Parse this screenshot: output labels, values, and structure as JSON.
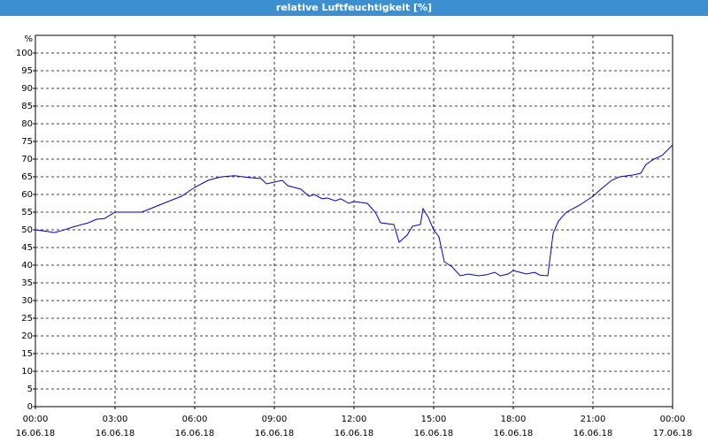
{
  "window_title": "relative Luftfeuchtigkeit [%]",
  "chart_data": {
    "type": "line",
    "y_label": "%",
    "color": "#0000c0",
    "grid": true,
    "xlim": [
      0,
      24
    ],
    "ylim": [
      0,
      105
    ],
    "xticks": [
      {
        "value": 0,
        "label": "00:00",
        "date": "16.06.18"
      },
      {
        "value": 3,
        "label": "03:00",
        "date": "16.06.18"
      },
      {
        "value": 6,
        "label": "06:00",
        "date": "16.06.18"
      },
      {
        "value": 9,
        "label": "09:00",
        "date": "16.06.18"
      },
      {
        "value": 12,
        "label": "12:00",
        "date": "16.06.18"
      },
      {
        "value": 15,
        "label": "15:00",
        "date": "16.06.18"
      },
      {
        "value": 18,
        "label": "18:00",
        "date": "16.06.18"
      },
      {
        "value": 21,
        "label": "21:00",
        "date": "16.06.18"
      },
      {
        "value": 24,
        "label": "00:00",
        "date": "17.06.18"
      }
    ],
    "yticks": [
      0,
      5,
      10,
      15,
      20,
      25,
      30,
      35,
      40,
      45,
      50,
      55,
      60,
      65,
      70,
      75,
      80,
      85,
      90,
      95,
      100
    ],
    "x": [
      0,
      0.5,
      0.7,
      1,
      1.5,
      2,
      2.3,
      2.6,
      3,
      3.5,
      4,
      4.5,
      5,
      5.5,
      6,
      6.5,
      7,
      7.5,
      8,
      8.5,
      8.7,
      9,
      9.3,
      9.5,
      10,
      10.3,
      10.5,
      10.8,
      11,
      11.3,
      11.5,
      11.8,
      12,
      12.5,
      12.8,
      13,
      13.5,
      13.7,
      14,
      14.2,
      14.5,
      14.6,
      14.8,
      15,
      15.2,
      15.4,
      15.7,
      16,
      16.3,
      16.7,
      17,
      17.3,
      17.5,
      17.8,
      18,
      18.5,
      18.8,
      19,
      19.3,
      19.5,
      19.7,
      20,
      20.5,
      21,
      21.3,
      21.7,
      22,
      22.5,
      22.8,
      23,
      23.3,
      23.6,
      24
    ],
    "values": [
      50,
      49.5,
      49.2,
      49.8,
      51,
      52,
      53,
      53.2,
      55,
      55,
      55,
      56.5,
      58,
      59.5,
      62,
      64,
      65,
      65.3,
      64.8,
      64.5,
      63,
      63.5,
      64,
      62.5,
      61.5,
      59.5,
      60,
      58.8,
      59,
      58.2,
      58.8,
      57.5,
      58,
      57.5,
      55,
      52,
      51.5,
      46.5,
      48.5,
      51,
      51.5,
      56,
      53.5,
      50,
      48,
      41,
      39.5,
      37,
      37.5,
      37,
      37.3,
      38,
      37,
      37.5,
      38.5,
      37.5,
      38,
      37.2,
      37,
      49,
      52.5,
      55,
      57,
      59.5,
      61.5,
      64,
      65,
      65.5,
      66,
      68.5,
      70,
      71,
      74
    ]
  }
}
